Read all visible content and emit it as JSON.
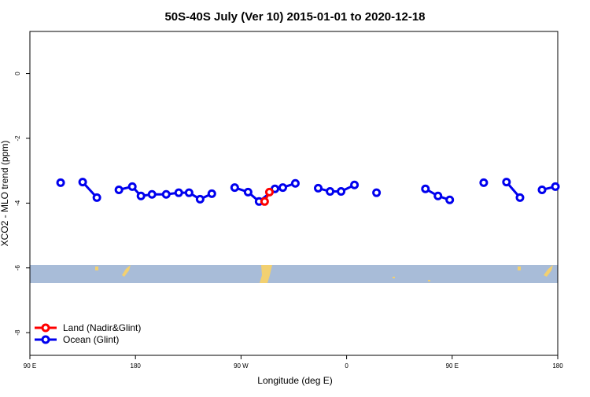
{
  "chart_data": {
    "type": "line",
    "title": "50S-40S July (Ver 10)   2015-01-01 to 2020-12-18",
    "xlabel": "Longitude (deg E)",
    "ylabel": "XCO2 - MLO trend (ppm)",
    "xlim": [
      90,
      540
    ],
    "xticks": [
      {
        "value": 90,
        "label": "90 E"
      },
      {
        "value": 180,
        "label": "180"
      },
      {
        "value": 270,
        "label": "90 W"
      },
      {
        "value": 360,
        "label": "0"
      },
      {
        "value": 450,
        "label": "90 E"
      },
      {
        "value": 540,
        "label": "180"
      }
    ],
    "ylim": [
      -8.7,
      1.3
    ],
    "yticks": [
      0,
      -2,
      -4,
      -6,
      -8
    ],
    "legend": "lower left",
    "series": [
      {
        "name": "Land (Nadir&Glint)",
        "color": "#ff0000",
        "x": [
          290.1,
          294.2
        ],
        "values": [
          -3.95,
          -3.66
        ]
      },
      {
        "name": "Ocean (Glint)",
        "color": "#0000ee",
        "x": [
          116.2,
          null,
          135,
          147.1,
          null,
          165.9,
          177.3,
          184.7,
          194.1,
          206.2,
          216.9,
          225.7,
          235.1,
          245.1,
          null,
          264.6,
          276.0,
          285.4,
          298.9,
          305.6,
          316.3,
          null,
          335.8,
          345.9,
          355.3,
          366.7,
          null,
          385.5,
          null,
          427.2,
          437.9,
          447.9,
          null,
          476.9,
          null,
          496.3,
          507.8,
          null,
          526.6,
          538.0
        ],
        "values": [
          -3.37,
          null,
          -3.35,
          -3.83,
          null,
          -3.59,
          -3.49,
          -3.78,
          -3.73,
          -3.73,
          -3.68,
          -3.68,
          -3.88,
          -3.71,
          null,
          -3.52,
          -3.66,
          -3.95,
          -3.56,
          -3.52,
          -3.39,
          null,
          -3.54,
          -3.64,
          -3.64,
          -3.44,
          null,
          -3.68,
          null,
          -3.56,
          -3.78,
          -3.9,
          null,
          -3.37,
          null,
          -3.35,
          -3.83,
          null,
          -3.59,
          -3.49
        ]
      }
    ]
  }
}
